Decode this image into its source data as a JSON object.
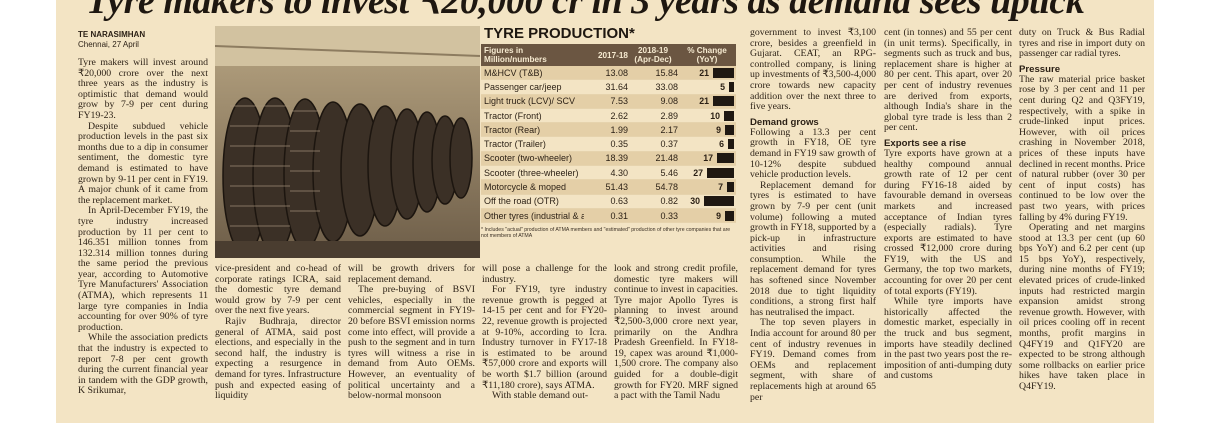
{
  "headline": "Tyre makers to invest ₹20,000 cr in 3 years as demand sees uptick",
  "byline": {
    "name": "TE NARASIMHAN",
    "place": "Chennai, 27 April"
  },
  "col1": [
    "Tyre makers will invest around ₹20,000 crore over the next three years as the industry is optimistic that demand would grow by 7-9 per cent during FY19-23.",
    "Despite subdued vehicle production levels in the past six months due to a dip in consumer sentiment, the domestic tyre demand is estimated to have grown by 9-11 per cent in FY19. A major chunk of it came from the replacement market.",
    "In April-December FY19, the tyre industry increased production by 11 per cent to 146.351 million tonnes from 132.314 million tonnes during the same period the previous year, according to Automotive Tyre Manufacturers' Association (ATMA), which represents 11 large tyre companies in India accounting for over 90% of tyre production.",
    "While the association predicts that the industry is expected to report 7-8 per cent growth during the current financial year in tandem with the GDP growth, K Srikumar,"
  ],
  "col2": [
    "vice-president and co-head of corporate ratings ICRA, said the domestic tyre demand would grow by 7-9 per cent over the next five years.",
    "Rajiv Budhraja, director general of ATMA, said post elections, and especially in the second half, the industry is expecting a resurgence in demand for tyres. Infrastructure push and expected easing of liquidity"
  ],
  "col3": [
    "will be growth drivers for replacement demand.",
    "The pre-buying of BSVI vehicles, especially in the commercial segment in FY19-20 before BSVI emission norms come into effect, will provide a push to the segment and in turn tyres will witness a rise in demand from Auto OEMs. However, an eventuality of political uncertainty and a below-normal monsoon"
  ],
  "col4": [
    "will pose a challenge for the industry.",
    "For FY19, tyre industry revenue growth is pegged at 14-15 per cent and for FY20-22, revenue growth is projected at 9-10%, according to Icra. Industry turnover in FY17-18 is estimated to be around ₹57,000 crore and exports will be worth $1.7 billion (around ₹11,180 crore), says ATMA.",
    "With stable demand out-"
  ],
  "col5": [
    "look and strong credit profile, domestic tyre makers will continue to invest in capacities. Tyre major Apollo Tyres is planning to invest around ₹2,500-3,000 crore next year, primarily on the Andhra Pradesh Greenfield. In FY18-19, capex was around ₹1,000-1,500 crore. The company also guided for a double-digit growth for FY20. MRF signed a pact with the Tamil Nadu"
  ],
  "col6a": [
    "government to invest ₹3,100 crore, besides a greenfield in Gujarat. CEAT, an RPG-controlled company, is lining up investments of ₹3,500-4,000 crore towards new capacity addition over the next three to five years."
  ],
  "col6_heading": "Demand grows",
  "col6b": [
    "Following a 13.3 per cent growth in FY18, OE tyre demand in FY19 saw growth of 10-12% despite subdued vehicle production levels.",
    "Replacement demand for tyres is estimated to have grown by 7-9 per cent (unit volume) following a muted growth in FY18, supported by a pick-up in infrastructure activities and rising consumption. While the replacement demand for tyres has softened since November 2018 due to tight liquidity conditions, a strong first half has neutralised the impact.",
    "The top seven players in India account for around 80 per cent of industry revenues in FY19. Demand comes from OEMs and replacement segment, with share of replacements high at around 65 per"
  ],
  "col7a": [
    "cent (in tonnes) and 55 per cent (in unit terms). Specifically, in segments such as truck and bus, replacement share is higher at 80 per cent. This apart, over 20 per cent of industry revenues are derived from exports, although India's share in the global tyre trade is less than 2 per cent."
  ],
  "col7_heading": "Exports see a rise",
  "col7b": [
    "Tyre exports have grown at a healthy compound annual growth rate of 12 per cent during FY16-18 aided by favourable demand in overseas markets and increased acceptance of Indian tyres (especially radials). Tyre exports are estimated to have crossed ₹12,000 crore during FY19, with the US and Germany, the top two markets, accounting for over 20 per cent of total exports (FY19).",
    "While tyre imports have historically affected the domestic market, especially in the truck and bus segment, imports have steadily declined in the past two years post the re-imposition of anti-dumping duty and customs"
  ],
  "col8a": [
    "duty on Truck & Bus Radial tyres and rise in import duty on passenger car radial tyres."
  ],
  "col8_heading": "Pressure",
  "col8b": [
    "The raw material price basket rose by 3 per cent and 11 per cent during Q2 and Q3FY19, respectively, with a spike in crude-linked input prices. However, with oil prices crashing in November 2018, prices of these inputs have declined in recent months. Price of natural rubber (over 30 per cent of input costs) has continued to be low over the past two years, with prices falling by 4% during FY19.",
    "Operating and net margins stood at 13.3 per cent (up 60 bps YoY) and 6.2 per cent (up 15 bps YoY), respectively, during nine months of FY19; elevated prices of crude-linked inputs had restricted margin expansion amidst strong revenue growth. However, with oil prices cooling off in recent months, profit margins in Q4FY19 and Q1FY20 are expected to be strong although some rollbacks on earlier price hikes have taken place in Q4FY19."
  ],
  "table": {
    "title": "TYRE PRODUCTION*",
    "head": [
      "Figures in Million/numbers",
      "2017-18",
      "2018-19 (Apr-Dec)",
      "% Change (YoY)"
    ],
    "rows": [
      [
        "M&HCV (T&B)",
        "13.08",
        "15.84",
        "21"
      ],
      [
        "Passenger car/jeep",
        "31.64",
        "33.08",
        "5"
      ],
      [
        "Light truck (LCV)/ SCV",
        "7.53",
        "9.08",
        "21"
      ],
      [
        "Tractor (Front)",
        "2.62",
        "2.89",
        "10"
      ],
      [
        "Tractor (Rear)",
        "1.99",
        "2.17",
        "9"
      ],
      [
        "Tractor (Trailer)",
        "0.35",
        "0.37",
        "6"
      ],
      [
        "Scooter (two-wheeler)",
        "18.39",
        "21.48",
        "17"
      ],
      [
        "Scooter (three-wheeler)",
        "4.30",
        "5.46",
        "27"
      ],
      [
        "Motorcycle & moped",
        "51.43",
        "54.78",
        "7"
      ],
      [
        "Off the road (OTR)",
        "0.63",
        "0.82",
        "30"
      ],
      [
        "Other tyres (industrial & adv)",
        "0.31",
        "0.33",
        "9"
      ]
    ],
    "note": "* Includes \"actual\" production of ATMA members and \"estimated\" production of other tyre companies that are not members of ATMA"
  }
}
